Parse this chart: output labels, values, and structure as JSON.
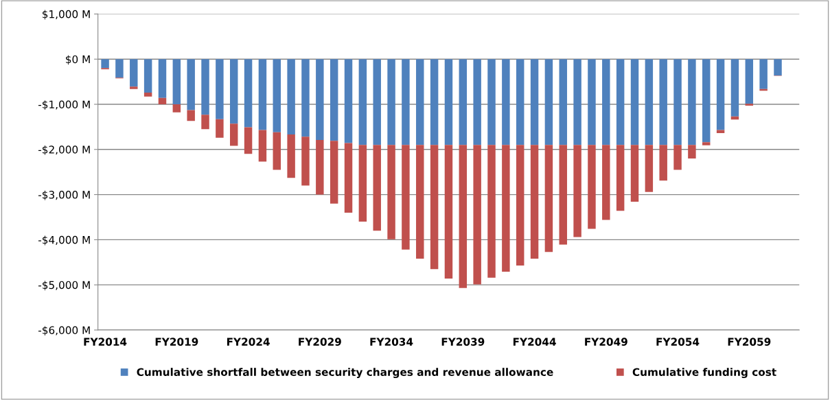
{
  "chart_data": {
    "type": "bar",
    "stacked": true,
    "categories": [
      "FY2014",
      null,
      null,
      null,
      null,
      "FY2019",
      null,
      null,
      null,
      null,
      "FY2024",
      null,
      null,
      null,
      null,
      "FY2029",
      null,
      null,
      null,
      null,
      "FY2034",
      null,
      null,
      null,
      null,
      "FY2039",
      null,
      null,
      null,
      null,
      "FY2044",
      null,
      null,
      null,
      null,
      "FY2049",
      null,
      null,
      null,
      null,
      "FY2054",
      null,
      null,
      null,
      null,
      "FY2059",
      null,
      null,
      null
    ],
    "series": [
      {
        "name": "Cumulative shortfall between security charges and revenue allowance",
        "color": "#4f81bd",
        "values": [
          -200,
          -410,
          -610,
          -740,
          -860,
          -1000,
          -1130,
          -1230,
          -1330,
          -1430,
          -1510,
          -1570,
          -1620,
          -1670,
          -1720,
          -1790,
          -1810,
          -1860,
          -1900,
          -1900,
          -1900,
          -1900,
          -1900,
          -1900,
          -1900,
          -1900,
          -1900,
          -1900,
          -1900,
          -1900,
          -1900,
          -1900,
          -1900,
          -1900,
          -1900,
          -1900,
          -1900,
          -1900,
          -1900,
          -1900,
          -1900,
          -1900,
          -1840,
          -1570,
          -1270,
          -990,
          -660,
          -360,
          0
        ]
      },
      {
        "name": "Cumulative funding cost",
        "color": "#c0504d",
        "values": [
          -25,
          -15,
          -50,
          -90,
          -140,
          -180,
          -240,
          -320,
          -410,
          -490,
          -590,
          -700,
          -830,
          -960,
          -1080,
          -1210,
          -1390,
          -1540,
          -1700,
          -1900,
          -2090,
          -2320,
          -2520,
          -2750,
          -2960,
          -3170,
          -3090,
          -2940,
          -2810,
          -2670,
          -2520,
          -2370,
          -2210,
          -2040,
          -1860,
          -1660,
          -1460,
          -1260,
          -1040,
          -790,
          -550,
          -300,
          -70,
          -70,
          -70,
          -40,
          -40,
          -10,
          0
        ]
      }
    ],
    "ylim": [
      -6000,
      1000
    ],
    "yticks": [
      {
        "value": -6000,
        "label": "-$6,000 M"
      },
      {
        "value": -5000,
        "label": "-$5,000 M"
      },
      {
        "value": -4000,
        "label": "-$4,000 M"
      },
      {
        "value": -3000,
        "label": "-$3,000 M"
      },
      {
        "value": -2000,
        "label": "-$2,000 M"
      },
      {
        "value": -1000,
        "label": "-$1,000 M"
      },
      {
        "value": 0,
        "label": "$0 M"
      },
      {
        "value": 1000,
        "label": "$1,000 M"
      }
    ],
    "grid": "y",
    "legend": "bottom"
  }
}
